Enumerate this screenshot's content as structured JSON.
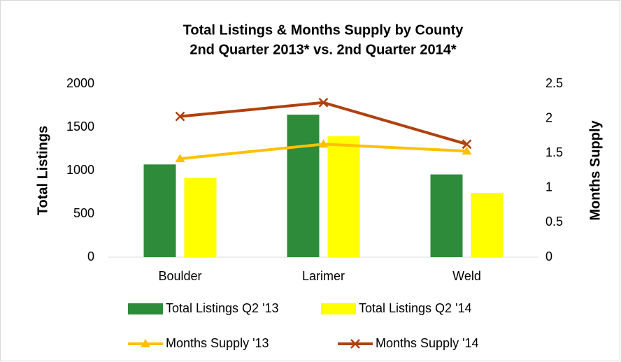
{
  "chart_data": {
    "type": "bar",
    "title": "Total Listings & Months Supply by County",
    "subtitle": "2nd Quarter 2013* vs. 2nd Quarter 2014*",
    "y_label": "Total Listings",
    "y2_label": "Months Supply",
    "categories": [
      "Boulder",
      "Larimer",
      "Weld"
    ],
    "series": [
      {
        "name": "Total Listings Q2 '13",
        "type": "bar",
        "color": "#2e8b3a",
        "values": [
          1070,
          1645,
          955
        ]
      },
      {
        "name": "Total Listings Q2 '14",
        "type": "bar",
        "color": "#ffff00",
        "values": [
          915,
          1395,
          740
        ]
      },
      {
        "name": "Months Supply '13",
        "type": "line",
        "marker": "triangle",
        "axis": "y2",
        "color": "#ffc000",
        "values": [
          1.42,
          1.63,
          1.53
        ]
      },
      {
        "name": "Months Supply '14",
        "type": "line",
        "marker": "x",
        "axis": "y2",
        "color": "#b0410e",
        "values": [
          2.03,
          2.23,
          1.63
        ]
      }
    ],
    "ylim": [
      0,
      2000
    ],
    "yticks": [
      0,
      500,
      1000,
      1500,
      2000
    ],
    "y2lim": [
      0,
      2.5
    ],
    "y2ticks": [
      0,
      0.5,
      1,
      1.5,
      2,
      2.5
    ],
    "legend": "bottom"
  }
}
